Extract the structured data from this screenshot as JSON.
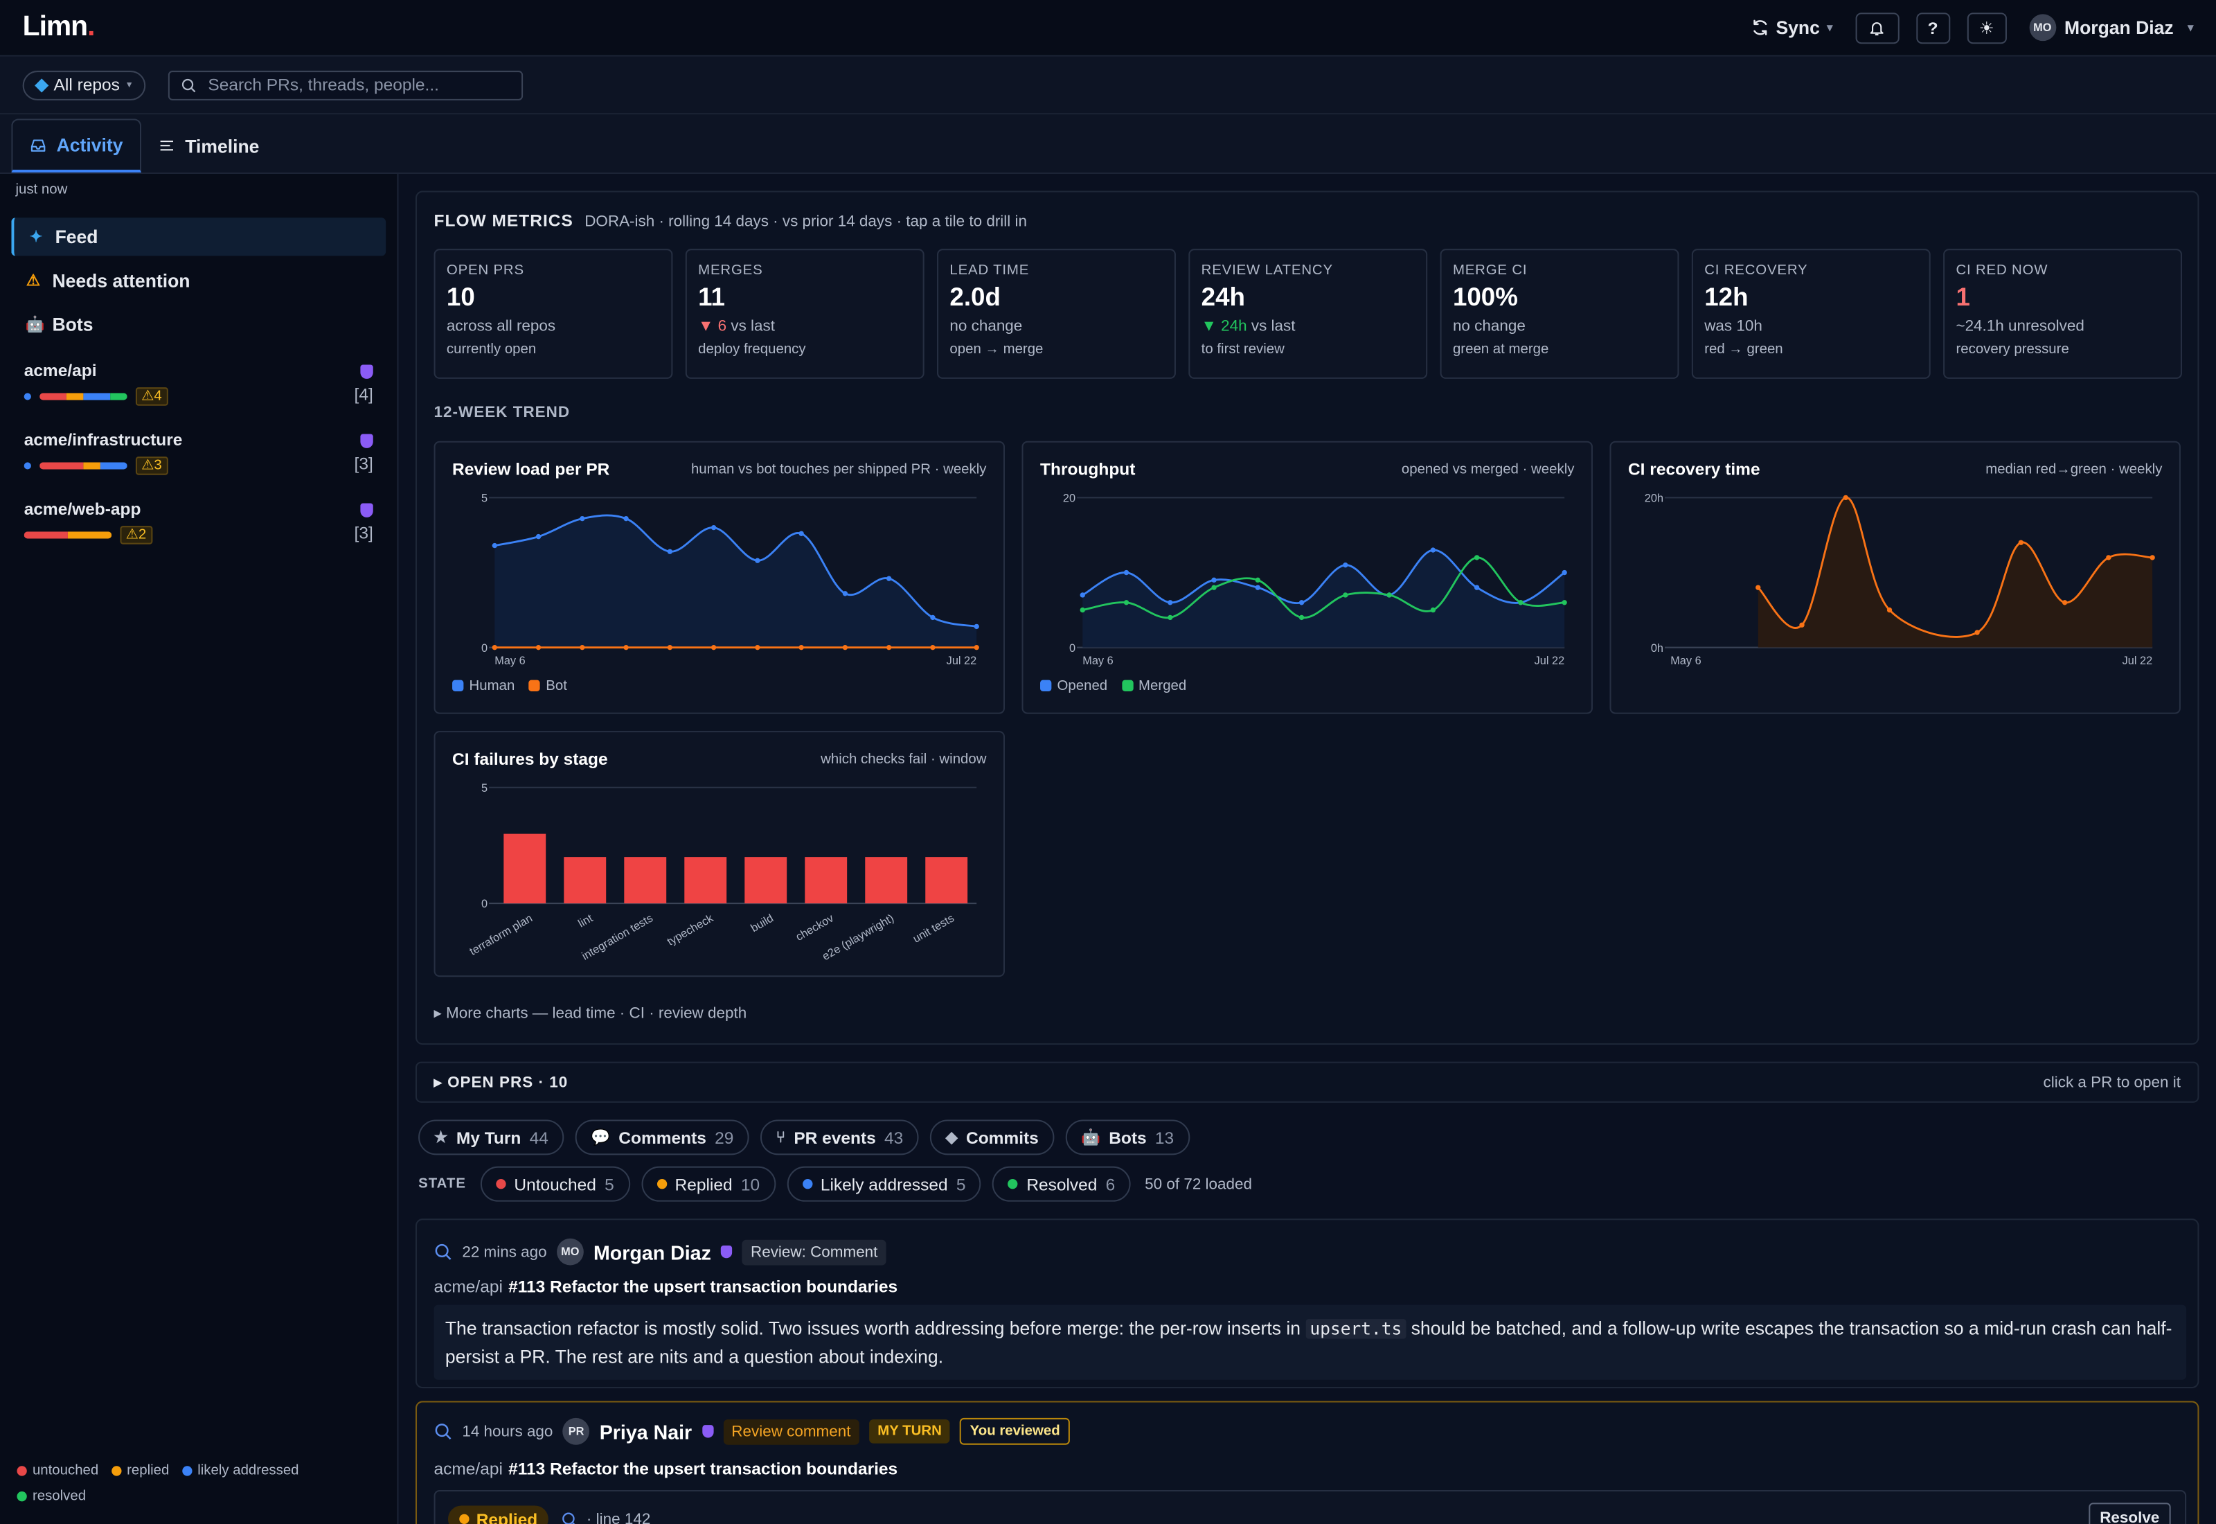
{
  "app": {
    "logo": "Limn",
    "logo_dot": "."
  },
  "topbar": {
    "sync": "Sync",
    "help": "?",
    "user": {
      "initials": "MO",
      "name": "Morgan Diaz"
    }
  },
  "filters": {
    "repos": "All repos",
    "search_placeholder": "Search PRs, threads, people..."
  },
  "tabs": [
    {
      "label": "Activity"
    },
    {
      "label": "Timeline"
    }
  ],
  "sidebar": {
    "updated": "just now",
    "nav": [
      {
        "label": "Feed"
      },
      {
        "label": "Needs attention"
      },
      {
        "label": "Bots"
      }
    ],
    "repos": [
      {
        "name": "acme/api",
        "warn": "⚠4",
        "count": "[4]",
        "segments": [
          [
            "#e84848",
            0.3
          ],
          [
            "#f59e0b",
            0.2
          ],
          [
            "#3b82f6",
            0.3
          ],
          [
            "#22c55e",
            0.2
          ]
        ]
      },
      {
        "name": "acme/infrastructure",
        "warn": "⚠3",
        "count": "[3]",
        "segments": [
          [
            "#e84848",
            0.5
          ],
          [
            "#f59e0b",
            0.2
          ],
          [
            "#3b82f6",
            0.3
          ]
        ]
      },
      {
        "name": "acme/web-app",
        "warn": "⚠2",
        "count": "[3]",
        "segments": [
          [
            "#e84848",
            0.5
          ],
          [
            "#f59e0b",
            0.5
          ]
        ]
      }
    ],
    "legend": [
      {
        "label": "untouched",
        "color": "#e84848"
      },
      {
        "label": "replied",
        "color": "#f59e0b"
      },
      {
        "label": "likely addressed",
        "color": "#3b82f6"
      },
      {
        "label": "resolved",
        "color": "#22c55e"
      }
    ]
  },
  "flow": {
    "title": "FLOW METRICS",
    "subtitle": "DORA-ish · rolling 14 days · vs prior 14 days · tap a tile to drill in",
    "tiles": [
      {
        "label": "OPEN PRS",
        "value": "10",
        "d1": "across all repos",
        "d2": "currently open"
      },
      {
        "label": "MERGES",
        "value": "11",
        "d1_arrow": "▼",
        "d1_num": "6",
        "d1": " vs last",
        "d2": "deploy frequency"
      },
      {
        "label": "LEAD TIME",
        "value": "2.0d",
        "d1": "no change",
        "d2": "open → merge"
      },
      {
        "label": "REVIEW LATENCY",
        "value": "24h",
        "d1_arrow": "▼",
        "d1_num": "24h",
        "d1": " vs last",
        "d2": "to first review"
      },
      {
        "label": "MERGE CI",
        "value": "100%",
        "d1": "no change",
        "d2": "green at merge"
      },
      {
        "label": "CI RECOVERY",
        "value": "12h",
        "d1": "was 10h",
        "d2": "red → green"
      },
      {
        "label": "CI RED NOW",
        "value": "1",
        "d1": "~24.1h unresolved",
        "d2": "recovery pressure"
      }
    ],
    "trend_label": "12-WEEK TREND",
    "more_charts": "▸ More charts — lead time · CI · review depth"
  },
  "chart_data": [
    {
      "type": "area",
      "title": "Review load per PR",
      "subtitle": "human vs bot touches per shipped PR · weekly",
      "x": [
        "May 6",
        "May 13",
        "May 20",
        "May 27",
        "Jun 3",
        "Jun 10",
        "Jun 17",
        "Jun 24",
        "Jul 1",
        "Jul 8",
        "Jul 15",
        "Jul 22"
      ],
      "xticks": [
        "May 6",
        "Jul 22"
      ],
      "yticks": [
        "0",
        "5"
      ],
      "ylim": [
        0,
        5
      ],
      "series": [
        {
          "name": "Human",
          "color": "#3b82f6",
          "values": [
            3.4,
            3.7,
            4.3,
            4.3,
            3.2,
            4.0,
            2.9,
            3.8,
            1.8,
            2.3,
            1.0,
            0.7
          ]
        },
        {
          "name": "Bot",
          "color": "#f97316",
          "values": [
            0,
            0,
            0,
            0,
            0,
            0,
            0,
            0,
            0,
            0,
            0,
            0
          ]
        }
      ]
    },
    {
      "type": "area",
      "title": "Throughput",
      "subtitle": "opened vs merged · weekly",
      "x": [
        "May 6",
        "May 13",
        "May 20",
        "May 27",
        "Jun 3",
        "Jun 10",
        "Jun 17",
        "Jun 24",
        "Jul 1",
        "Jul 8",
        "Jul 15",
        "Jul 22"
      ],
      "xticks": [
        "May 6",
        "Jul 22"
      ],
      "yticks": [
        "0",
        "20"
      ],
      "ylim": [
        0,
        20
      ],
      "series": [
        {
          "name": "Opened",
          "color": "#3b82f6",
          "values": [
            7,
            10,
            6,
            9,
            8,
            6,
            11,
            7,
            13,
            8,
            6,
            10
          ]
        },
        {
          "name": "Merged",
          "color": "#22c55e",
          "values": [
            5,
            6,
            4,
            8,
            9,
            4,
            7,
            7,
            5,
            12,
            6,
            6
          ]
        }
      ]
    },
    {
      "type": "area",
      "title": "CI recovery time",
      "subtitle": "median red→green · weekly",
      "x": [
        "May 6",
        "May 13",
        "May 20",
        "May 27",
        "Jun 3",
        "Jun 10",
        "Jun 17",
        "Jun 24",
        "Jul 1",
        "Jul 8",
        "Jul 15",
        "Jul 22"
      ],
      "xticks": [
        "May 6",
        "Jul 22"
      ],
      "yticks": [
        "0h",
        "20h"
      ],
      "ylim": [
        0,
        20
      ],
      "series": [
        {
          "name": "",
          "color": "#f97316",
          "values": [
            null,
            null,
            8,
            3,
            20,
            5,
            null,
            2,
            14,
            6,
            12,
            12
          ]
        }
      ]
    },
    {
      "type": "bar",
      "title": "CI failures by stage",
      "subtitle": "which checks fail · window",
      "categories": [
        "terraform plan",
        "lint",
        "integration tests",
        "typecheck",
        "build",
        "checkov",
        "e2e (playwright)",
        "unit tests"
      ],
      "values": [
        3,
        2,
        2,
        2,
        2,
        2,
        2,
        2
      ],
      "yticks": [
        "0",
        "5"
      ],
      "ylim": [
        0,
        5
      ],
      "color": "#ef4444"
    }
  ],
  "openprs": {
    "label": "OPEN PRS · 10",
    "hint": "click a PR to open it"
  },
  "kinds": [
    {
      "icon": "★",
      "label": "My Turn",
      "count": "44"
    },
    {
      "icon": "💬",
      "label": "Comments",
      "count": "29"
    },
    {
      "icon": "⑂",
      "label": "PR events",
      "count": "43"
    },
    {
      "icon": "◆",
      "label": "Commits",
      "count": ""
    },
    {
      "icon": "🤖",
      "label": "Bots",
      "count": "13"
    }
  ],
  "states": {
    "label": "STATE",
    "items": [
      {
        "label": "Untouched",
        "count": "5",
        "color": "#e84848"
      },
      {
        "label": "Replied",
        "count": "10",
        "color": "#f59e0b"
      },
      {
        "label": "Likely addressed",
        "count": "5",
        "color": "#3b82f6"
      },
      {
        "label": "Resolved",
        "count": "6",
        "color": "#22c55e"
      }
    ],
    "loaded": "50 of 72 loaded"
  },
  "feed": [
    {
      "ago": "22 mins ago",
      "initials": "MO",
      "author": "Morgan Diaz",
      "badge": "Review: Comment",
      "repo": "acme/api",
      "pr": "#113 Refactor the upsert transaction boundaries",
      "body_a": "The transaction refactor is mostly solid. Two issues worth addressing before merge: the per-row inserts in ",
      "body_code": "upsert.ts",
      "body_b": " should be batched, and a follow-up write escapes the transaction so a mid-run crash can half-persist a PR. The rest are nits and a question about indexing."
    },
    {
      "ago": "14 hours ago",
      "initials": "PR",
      "author": "Priya Nair",
      "badge": "Review comment",
      "myturn": "MY TURN",
      "reviewed": "You reviewed",
      "repo": "acme/api",
      "pr": "#113 Refactor the upsert transaction boundaries",
      "state": "Replied",
      "line": "line 142",
      "resolve": "Resolve"
    }
  ]
}
